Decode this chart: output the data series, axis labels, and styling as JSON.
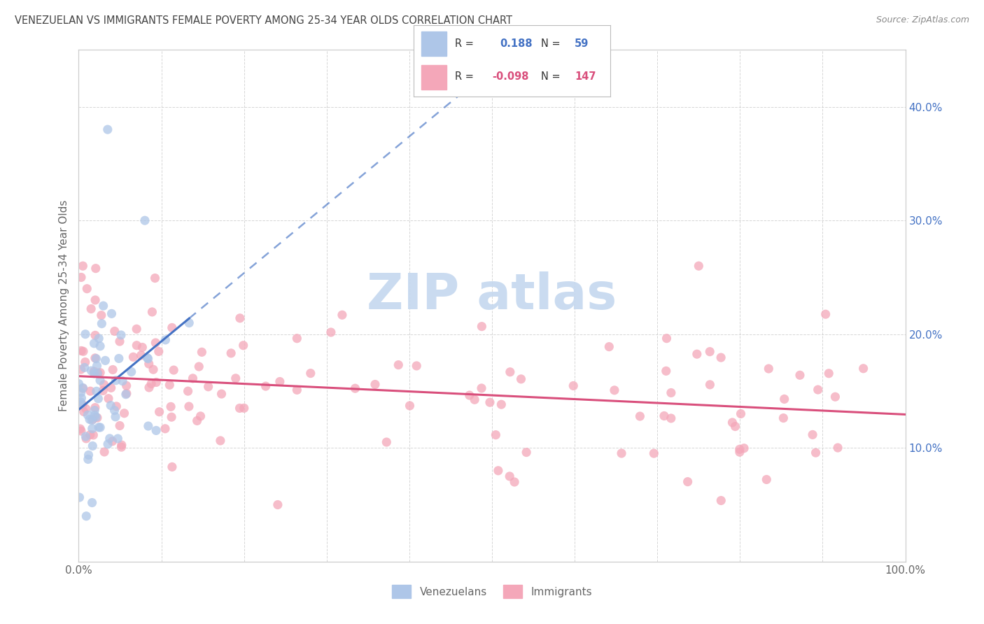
{
  "title": "VENEZUELAN VS IMMIGRANTS FEMALE POVERTY AMONG 25-34 YEAR OLDS CORRELATION CHART",
  "source": "Source: ZipAtlas.com",
  "ylabel": "Female Poverty Among 25-34 Year Olds",
  "xlim": [
    0,
    100
  ],
  "ylim": [
    0,
    45
  ],
  "venezuelan_R": 0.188,
  "venezuelan_N": 59,
  "immigrant_R": -0.098,
  "immigrant_N": 147,
  "venezuelan_color": "#aec6e8",
  "immigrant_color": "#f4a7b9",
  "trend_venezuelan_color": "#4472c4",
  "trend_immigrant_color": "#d94f7c",
  "watermark_text": "ZIP atlas",
  "watermark_color": "#c5d8ef",
  "background_color": "#ffffff",
  "grid_color": "#cccccc",
  "title_color": "#444444",
  "axis_label_color": "#666666",
  "right_tick_color": "#4472c4",
  "legend_title_color": "#333333"
}
